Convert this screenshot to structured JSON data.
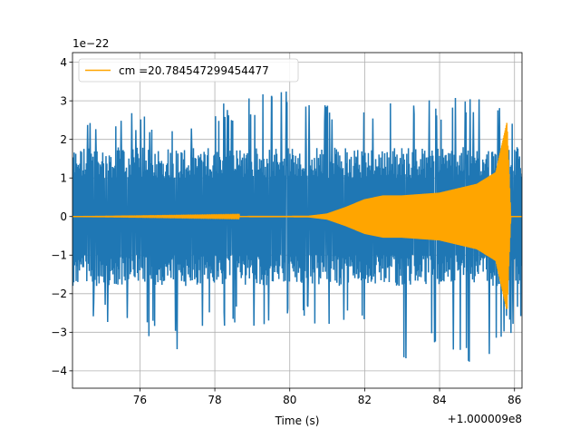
{
  "chart_data": {
    "type": "line",
    "xlabel": "Time (s)",
    "ylabel": "",
    "x_offset_label": "+1.000009e8",
    "y_scale_label": "1e−22",
    "xlim": [
      74.2,
      86.2
    ],
    "ylim": [
      -4.45,
      4.25
    ],
    "x_ticks": [
      76,
      78,
      80,
      82,
      84,
      86
    ],
    "x_tick_labels": [
      "76",
      "78",
      "80",
      "82",
      "84",
      "86"
    ],
    "y_ticks": [
      -4,
      -3,
      -2,
      -1,
      0,
      1,
      2,
      3,
      4
    ],
    "y_tick_labels": [
      "−4",
      "−3",
      "−2",
      "−1",
      "0",
      "1",
      "2",
      "3",
      "4"
    ],
    "grid": true,
    "legend_position": "upper-left",
    "series": [
      {
        "name": "",
        "color": "#1f77b4",
        "style": "noisy strain data",
        "x_range": [
          74.2,
          86.2
        ],
        "typical_amplitude": [
          -1.8,
          1.8
        ],
        "envelope": [
          {
            "x": 74.5,
            "max": 2.6,
            "min": -2.5
          },
          {
            "x": 76.0,
            "max": 2.7,
            "min": -3.2
          },
          {
            "x": 77.0,
            "max": 2.5,
            "min": -3.6
          },
          {
            "x": 78.0,
            "max": 2.9,
            "min": -2.9
          },
          {
            "x": 79.5,
            "max": 3.4,
            "min": -2.9
          },
          {
            "x": 81.0,
            "max": 3.0,
            "min": -2.8
          },
          {
            "x": 82.5,
            "max": 3.2,
            "min": -3.1
          },
          {
            "x": 83.0,
            "max": 2.9,
            "min": -3.9
          },
          {
            "x": 84.2,
            "max": 3.1,
            "min": -3.5
          },
          {
            "x": 85.0,
            "max": 3.3,
            "min": -4.0
          },
          {
            "x": 85.8,
            "max": 3.1,
            "min": -3.2
          },
          {
            "x": 86.2,
            "max": 2.7,
            "min": -2.6
          }
        ]
      },
      {
        "name": "cm =20.784547299454477",
        "color": "#ffa500",
        "style": "chirp template",
        "envelope": [
          {
            "x": 74.2,
            "amp": 0.0
          },
          {
            "x": 80.5,
            "amp": 0.02
          },
          {
            "x": 81.0,
            "amp": 0.08
          },
          {
            "x": 81.5,
            "amp": 0.25
          },
          {
            "x": 82.0,
            "amp": 0.45
          },
          {
            "x": 82.5,
            "amp": 0.55
          },
          {
            "x": 83.0,
            "amp": 0.55
          },
          {
            "x": 84.0,
            "amp": 0.62
          },
          {
            "x": 85.0,
            "amp": 0.85
          },
          {
            "x": 85.5,
            "amp": 1.15
          },
          {
            "x": 85.8,
            "amp": 2.45
          },
          {
            "x": 85.9,
            "amp": 0.0
          },
          {
            "x": 86.2,
            "amp": 0.0
          }
        ]
      }
    ]
  }
}
